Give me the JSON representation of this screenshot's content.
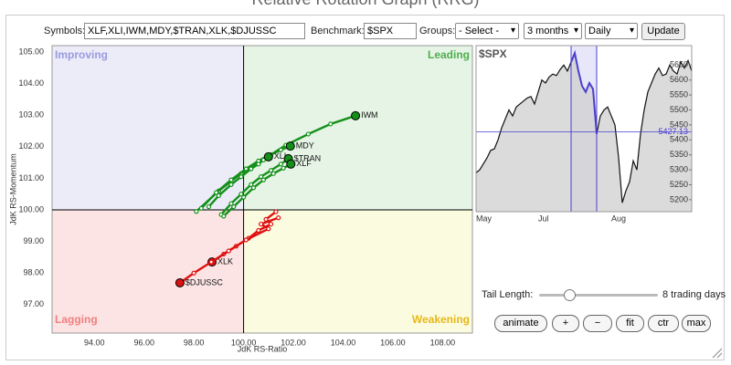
{
  "header": {
    "title": "Relative Rotation Graph (RRG)"
  },
  "controls": {
    "symbols_label": "Symbols:",
    "symbols": "XLF,XLI,IWM,MDY,$TRAN,XLK,$DJUSSC",
    "benchmark_label": "Benchmark:",
    "benchmark": "$SPX",
    "groups_label": "Groups:",
    "groups": "- Select -",
    "period": "3 months",
    "frequency": "Daily",
    "update": "Update"
  },
  "chart_data": [
    {
      "type": "rrg",
      "x_label": "JdK RS-Ratio",
      "y_label": "JdK RS-Momentum",
      "quadrant_labels": {
        "top_left": "Improving",
        "top_right": "Leading",
        "bottom_left": "Lagging",
        "bottom_right": "Weakening"
      },
      "center": 100,
      "xlim": [
        92.3,
        109.2
      ],
      "ylim": [
        96.1,
        105.2
      ],
      "xticks": [
        {
          "value": 94,
          "label": "94.00"
        },
        {
          "value": 96,
          "label": "96.00"
        },
        {
          "value": 98,
          "label": "98.00"
        },
        {
          "value": 100,
          "label": "100.00"
        },
        {
          "value": 102,
          "label": "102.00"
        },
        {
          "value": 104,
          "label": "104.00"
        },
        {
          "value": 106,
          "label": "106.00"
        },
        {
          "value": 108,
          "label": "108.00"
        }
      ],
      "yticks": [
        {
          "value": 97,
          "label": "97.00"
        },
        {
          "value": 98,
          "label": "98.00"
        },
        {
          "value": 99,
          "label": "99.00"
        },
        {
          "value": 100,
          "label": "100.00"
        },
        {
          "value": 101,
          "label": "101.00"
        },
        {
          "value": 102,
          "label": "102.00"
        },
        {
          "value": 103,
          "label": "103.00"
        },
        {
          "value": 104,
          "label": "104.00"
        },
        {
          "value": 105,
          "label": "105.00"
        }
      ],
      "series": [
        {
          "name": "IWM",
          "color": "#14901a",
          "x": [
            98.1,
            99.0,
            99.9,
            100.8,
            101.7,
            102.6,
            103.5,
            104.5
          ],
          "values": [
            99.95,
            100.6,
            101.15,
            101.6,
            102.05,
            102.4,
            102.72,
            102.98
          ]
        },
        {
          "name": "MDY",
          "color": "#14901a",
          "x": [
            98.3,
            98.9,
            99.5,
            100.1,
            100.6,
            101.1,
            101.5,
            101.88
          ],
          "values": [
            100.05,
            100.55,
            100.95,
            101.3,
            101.55,
            101.75,
            101.9,
            102.02
          ]
        },
        {
          "name": "XLI",
          "color": "#14901a",
          "x": [
            98.6,
            99.0,
            99.5,
            99.9,
            100.3,
            100.6,
            100.8,
            101.0
          ],
          "values": [
            100.1,
            100.45,
            100.8,
            101.05,
            101.3,
            101.45,
            101.58,
            101.68
          ]
        },
        {
          "name": "$TRAN",
          "color": "#14901a",
          "x": [
            99.1,
            99.5,
            99.9,
            100.3,
            100.7,
            101.1,
            101.5,
            101.8
          ],
          "values": [
            99.85,
            100.2,
            100.5,
            100.8,
            101.05,
            101.25,
            101.45,
            101.62
          ]
        },
        {
          "name": "XLF",
          "color": "#14901a",
          "x": [
            99.2,
            99.6,
            100.0,
            100.4,
            100.8,
            101.2,
            101.6,
            101.9
          ],
          "values": [
            99.8,
            100.1,
            100.4,
            100.7,
            100.95,
            101.15,
            101.32,
            101.45
          ]
        },
        {
          "name": "XLK",
          "color": "#e01010",
          "x": [
            101.3,
            100.9,
            101.1,
            100.6,
            100.2,
            99.7,
            99.2,
            98.73
          ],
          "values": [
            99.94,
            99.7,
            99.55,
            99.35,
            99.1,
            98.85,
            98.6,
            98.35
          ]
        },
        {
          "name": "$DJUSSC",
          "color": "#e01010",
          "x": [
            101.4,
            100.7,
            101.0,
            100.1,
            99.4,
            98.7,
            98.0,
            97.44
          ],
          "values": [
            99.75,
            99.55,
            99.4,
            99.05,
            98.7,
            98.35,
            98.0,
            97.69
          ]
        }
      ]
    },
    {
      "type": "line",
      "title": "$SPX",
      "color": "#111111",
      "highlight_color": "#4a3fd0",
      "categories": [
        "May",
        null,
        null,
        null,
        null,
        null,
        null,
        null,
        null,
        null,
        null,
        null,
        null,
        null,
        null,
        null,
        null,
        "Jul",
        null,
        null,
        null,
        null,
        null,
        null,
        null,
        null,
        null,
        null,
        null,
        null,
        null,
        null,
        null,
        null,
        null,
        null,
        null,
        "Aug",
        null,
        null,
        null,
        null,
        null,
        null,
        null,
        null,
        null,
        null,
        null,
        null,
        null,
        null,
        null,
        null,
        null,
        null,
        null,
        null,
        null,
        null
      ],
      "values": [
        5290,
        5300,
        5320,
        5340,
        5365,
        5370,
        5400,
        5440,
        5470,
        5500,
        5480,
        5510,
        5520,
        5530,
        5540,
        5545,
        5520,
        5560,
        5600,
        5590,
        5610,
        5620,
        5615,
        5635,
        5650,
        5630,
        5660,
        5690,
        5630,
        5580,
        5560,
        5590,
        5570,
        5420,
        5480,
        5500,
        5510,
        5480,
        5450,
        5340,
        5190,
        5230,
        5260,
        5330,
        5300,
        5420,
        5500,
        5560,
        5590,
        5620,
        5640,
        5615,
        5620,
        5650,
        5630,
        5620,
        5660,
        5640,
        5665,
        5630
      ],
      "highlight": [
        26,
        33
      ],
      "crosshair": 5427.13,
      "ylim": [
        5160,
        5715
      ],
      "yticks": [
        5200,
        5250,
        5300,
        5350,
        5400,
        5450,
        5500,
        5550,
        5600,
        5650
      ]
    }
  ],
  "tail": {
    "label": "Tail Length:",
    "text": "8 trading days"
  },
  "buttons": [
    "animate",
    "+",
    "−",
    "fit",
    "ctr",
    "max"
  ]
}
